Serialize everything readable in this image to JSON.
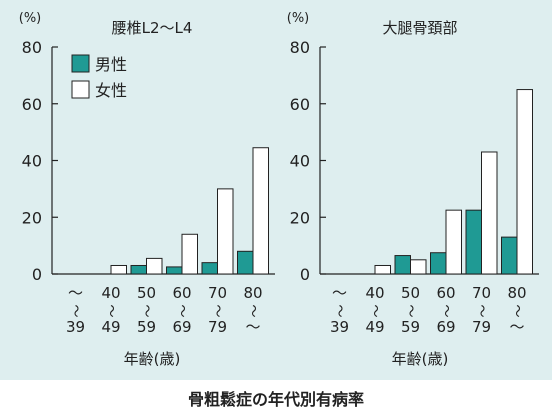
{
  "caption": "骨粗鬆症の年代別有病率",
  "colors": {
    "male": "#1f9a94",
    "female": "#ffffff",
    "background": "#deeeef",
    "axis": "#222222"
  },
  "chart_data": [
    {
      "type": "bar",
      "title": "腰椎L2〜L4",
      "unit_label": "(%)",
      "ylim": [
        0,
        80
      ],
      "yticks": [
        "0",
        "20",
        "40",
        "60",
        "80"
      ],
      "xlabel": "年齢(歳)",
      "categories": [
        {
          "top": "〜",
          "bottom": "39"
        },
        {
          "top": "40",
          "bottom": "49"
        },
        {
          "top": "50",
          "bottom": "59"
        },
        {
          "top": "60",
          "bottom": "69"
        },
        {
          "top": "70",
          "bottom": "79"
        },
        {
          "top": "80",
          "bottom": "〜"
        }
      ],
      "legend": [
        "男性",
        "女性"
      ],
      "series": [
        {
          "name": "男性",
          "values": [
            0,
            0,
            3,
            2.5,
            4,
            8
          ]
        },
        {
          "name": "女性",
          "values": [
            0,
            3,
            5.5,
            14,
            30,
            44.5
          ]
        }
      ]
    },
    {
      "type": "bar",
      "title": "大腿骨頚部",
      "unit_label": "(%)",
      "ylim": [
        0,
        80
      ],
      "yticks": [
        "0",
        "20",
        "40",
        "60",
        "80"
      ],
      "xlabel": "年齢(歳)",
      "categories": [
        {
          "top": "〜",
          "bottom": "39"
        },
        {
          "top": "40",
          "bottom": "49"
        },
        {
          "top": "50",
          "bottom": "59"
        },
        {
          "top": "60",
          "bottom": "69"
        },
        {
          "top": "70",
          "bottom": "79"
        },
        {
          "top": "80",
          "bottom": "〜"
        }
      ],
      "series": [
        {
          "name": "男性",
          "values": [
            0,
            0,
            6.5,
            7.5,
            22.5,
            13
          ]
        },
        {
          "name": "女性",
          "values": [
            0,
            3,
            5,
            22.5,
            43,
            65
          ]
        }
      ]
    }
  ]
}
